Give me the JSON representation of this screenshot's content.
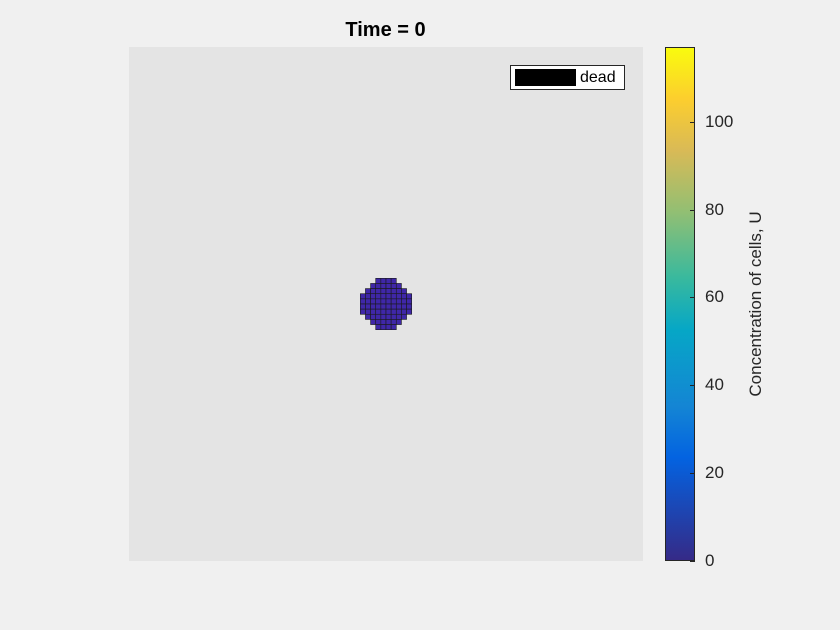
{
  "chart_data": {
    "type": "heatmap",
    "title": "Time = 0",
    "grid_cells": 100,
    "tumor_center": [
      50,
      50
    ],
    "tumor_radius": 4.8,
    "tumor_value": 0,
    "legend": {
      "entries": [
        "dead"
      ],
      "placement": "top-right",
      "colors": [
        "#000000"
      ]
    },
    "colorbar": {
      "label": "Concentration of cells, U",
      "range": [
        0,
        117
      ],
      "ticks": [
        0,
        20,
        40,
        60,
        80,
        100
      ],
      "colormap": "parula"
    },
    "background_color": "#e4e4e4",
    "cell_color": "#3f27a8",
    "cell_edge_color": "#1a1a1a"
  }
}
